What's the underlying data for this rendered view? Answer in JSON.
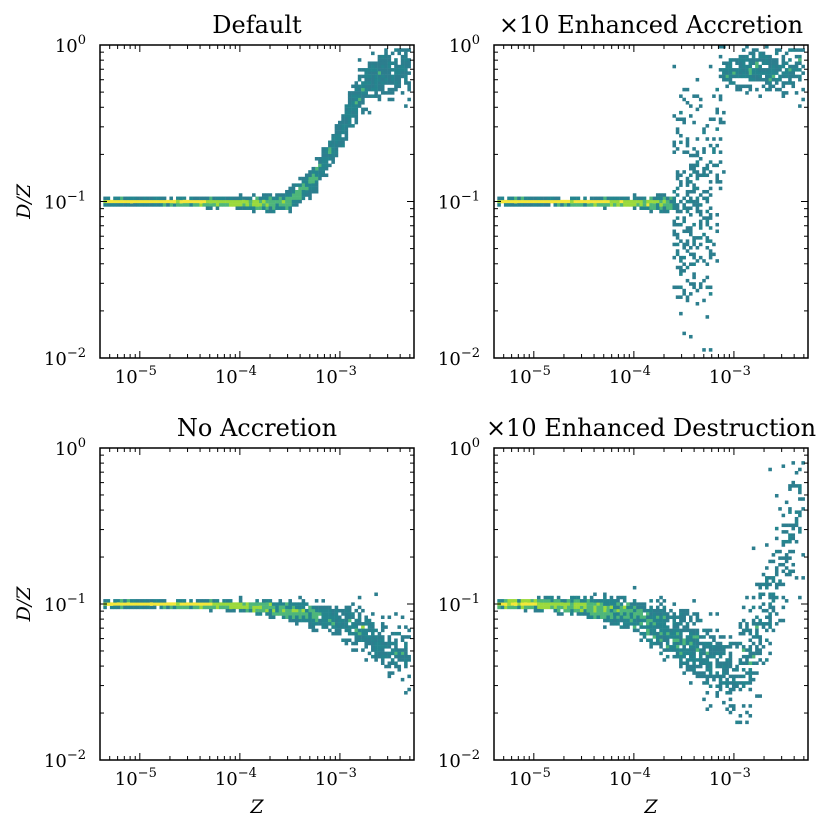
{
  "figure": {
    "x_axis_label": "Z",
    "y_axis_label": "D/Z"
  },
  "chart_data": [
    {
      "type": "heatmap",
      "title": "Default",
      "xlabel": "",
      "ylabel": "D/Z",
      "x_scale": "log",
      "y_scale": "log",
      "xlim": [
        4e-06,
        0.0055
      ],
      "ylim": [
        0.01,
        1.0
      ],
      "x_ticks": [
        {
          "base": "10",
          "exp": "−5"
        },
        {
          "base": "10",
          "exp": "−4"
        },
        {
          "base": "10",
          "exp": "−3"
        }
      ],
      "y_ticks": [
        {
          "base": "10",
          "exp": "−2"
        },
        {
          "base": "10",
          "exp": "−1"
        },
        {
          "base": "10",
          "exp": "0"
        }
      ],
      "density_ridge": [
        {
          "Z": 4.5e-06,
          "DZ": 0.1
        },
        {
          "Z": 1e-05,
          "DZ": 0.1
        },
        {
          "Z": 5e-05,
          "DZ": 0.099
        },
        {
          "Z": 0.0001,
          "DZ": 0.098
        },
        {
          "Z": 0.0002,
          "DZ": 0.097
        },
        {
          "Z": 0.0003,
          "DZ": 0.1
        },
        {
          "Z": 0.0005,
          "DZ": 0.13
        },
        {
          "Z": 0.0007,
          "DZ": 0.18
        },
        {
          "Z": 0.001,
          "DZ": 0.27
        },
        {
          "Z": 0.0014,
          "DZ": 0.42
        },
        {
          "Z": 0.002,
          "DZ": 0.6
        },
        {
          "Z": 0.003,
          "DZ": 0.68
        },
        {
          "Z": 0.005,
          "DZ": 0.7
        }
      ]
    },
    {
      "type": "heatmap",
      "title": "×10 Enhanced Accretion",
      "xlabel": "",
      "ylabel": "",
      "x_scale": "log",
      "y_scale": "log",
      "xlim": [
        4e-06,
        0.0055
      ],
      "ylim": [
        0.01,
        1.0
      ],
      "x_ticks": [
        {
          "base": "10",
          "exp": "−5"
        },
        {
          "base": "10",
          "exp": "−4"
        },
        {
          "base": "10",
          "exp": "−3"
        }
      ],
      "y_ticks": [
        {
          "base": "10",
          "exp": "−2"
        },
        {
          "base": "10",
          "exp": "−1"
        },
        {
          "base": "10",
          "exp": "0"
        }
      ],
      "density_ridge": [
        {
          "Z": 4.5e-06,
          "DZ": 0.1
        },
        {
          "Z": 1e-05,
          "DZ": 0.1
        },
        {
          "Z": 5e-05,
          "DZ": 0.099
        },
        {
          "Z": 0.0001,
          "DZ": 0.098
        },
        {
          "Z": 0.0003,
          "DZ": 0.096
        },
        {
          "Z": 0.0006,
          "DZ": 0.1
        },
        {
          "Z": 0.0008,
          "DZ": 0.68
        },
        {
          "Z": 0.0015,
          "DZ": 0.69
        },
        {
          "Z": 0.005,
          "DZ": 0.7
        }
      ]
    },
    {
      "type": "heatmap",
      "title": "No Accretion",
      "xlabel": "Z",
      "ylabel": "D/Z",
      "x_scale": "log",
      "y_scale": "log",
      "xlim": [
        4e-06,
        0.0055
      ],
      "ylim": [
        0.01,
        1.0
      ],
      "x_ticks": [
        {
          "base": "10",
          "exp": "−5"
        },
        {
          "base": "10",
          "exp": "−4"
        },
        {
          "base": "10",
          "exp": "−3"
        }
      ],
      "y_ticks": [
        {
          "base": "10",
          "exp": "−2"
        },
        {
          "base": "10",
          "exp": "−1"
        },
        {
          "base": "10",
          "exp": "0"
        }
      ],
      "density_ridge": [
        {
          "Z": 4.5e-06,
          "DZ": 0.1
        },
        {
          "Z": 1e-05,
          "DZ": 0.1
        },
        {
          "Z": 5e-05,
          "DZ": 0.099
        },
        {
          "Z": 0.0001,
          "DZ": 0.097
        },
        {
          "Z": 0.0002,
          "DZ": 0.094
        },
        {
          "Z": 0.0005,
          "DZ": 0.087
        },
        {
          "Z": 0.001,
          "DZ": 0.078
        },
        {
          "Z": 0.002,
          "DZ": 0.062
        },
        {
          "Z": 0.003,
          "DZ": 0.052
        },
        {
          "Z": 0.005,
          "DZ": 0.045
        }
      ]
    },
    {
      "type": "heatmap",
      "title": "×10 Enhanced Destruction",
      "xlabel": "Z",
      "ylabel": "",
      "x_scale": "log",
      "y_scale": "log",
      "xlim": [
        4e-06,
        0.0055
      ],
      "ylim": [
        0.01,
        1.0
      ],
      "x_ticks": [
        {
          "base": "10",
          "exp": "−5"
        },
        {
          "base": "10",
          "exp": "−4"
        },
        {
          "base": "10",
          "exp": "−3"
        }
      ],
      "y_ticks": [
        {
          "base": "10",
          "exp": "−2"
        },
        {
          "base": "10",
          "exp": "−1"
        },
        {
          "base": "10",
          "exp": "0"
        }
      ],
      "density_ridge": [
        {
          "Z": 4.5e-06,
          "DZ": 0.1
        },
        {
          "Z": 1e-05,
          "DZ": 0.1
        },
        {
          "Z": 3e-05,
          "DZ": 0.097
        },
        {
          "Z": 0.0001,
          "DZ": 0.085
        },
        {
          "Z": 0.0003,
          "DZ": 0.06
        },
        {
          "Z": 0.0006,
          "DZ": 0.045
        },
        {
          "Z": 0.001,
          "DZ": 0.035
        },
        {
          "Z": 0.0015,
          "DZ": 0.045
        },
        {
          "Z": 0.002,
          "DZ": 0.08
        },
        {
          "Z": 0.003,
          "DZ": 0.2
        },
        {
          "Z": 0.005,
          "DZ": 0.45
        }
      ]
    }
  ],
  "colors": {
    "low": "#2c7e8e",
    "mid": "#4eb67a",
    "high": "#f4e73a",
    "axis": "#000000"
  }
}
